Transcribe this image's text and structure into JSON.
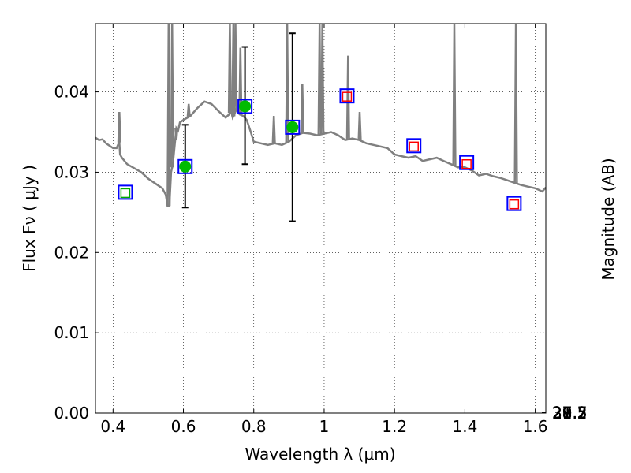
{
  "chart_data": {
    "type": "scatter",
    "xlabel": "Wavelength  λ (μm)",
    "ylabel": "Flux  Fν  ( μJy )",
    "y2label": "Magnitude (AB)",
    "xlim": [
      0.35,
      1.63
    ],
    "ylim": [
      0.0,
      0.0485
    ],
    "xticks": [
      0.4,
      0.6,
      0.8,
      1.0,
      1.2,
      1.4,
      1.6
    ],
    "xtick_labels": [
      "0.4",
      "0.6",
      "0.8",
      "1",
      "1.2",
      "1.4",
      "1.6"
    ],
    "yticks": [
      0.0,
      0.01,
      0.02,
      0.03,
      0.04
    ],
    "ytick_labels": [
      "0.00",
      "0.01",
      "0.02",
      "0.03",
      "0.04"
    ],
    "mag_ticks": [
      "27.2",
      "27.3",
      "27.5",
      "27.7",
      "28",
      "28.2",
      "28.5",
      "29",
      "29.5",
      "30",
      "31"
    ],
    "grid": true,
    "colors": {
      "sed_line": "#808080",
      "observed_fill": "#00bb00",
      "model_box": "#0000ff",
      "upper_limit": "#ff0000",
      "small_marker_green": "#00aa00",
      "errorbar": "#000000"
    },
    "series": [
      {
        "kind": "line",
        "x": [
          0.35,
          0.36,
          0.37,
          0.38,
          0.4,
          0.41,
          0.415,
          0.418,
          0.42,
          0.425,
          0.44,
          0.46,
          0.48,
          0.5,
          0.52,
          0.54,
          0.55,
          0.555,
          0.56,
          0.565,
          0.57,
          0.58,
          0.585,
          0.59,
          0.6,
          0.62,
          0.64,
          0.66,
          0.68,
          0.7,
          0.72,
          0.73,
          0.735,
          0.74,
          0.745,
          0.75,
          0.76,
          0.77,
          0.78,
          0.79,
          0.8,
          0.82,
          0.84,
          0.86,
          0.88,
          0.9,
          0.92,
          0.94,
          0.96,
          0.98,
          1.0,
          1.02,
          1.04,
          1.06,
          1.08,
          1.1,
          1.12,
          1.14,
          1.16,
          1.18,
          1.2,
          1.22,
          1.24,
          1.26,
          1.28,
          1.3,
          1.32,
          1.34,
          1.36,
          1.38,
          1.4,
          1.42,
          1.44,
          1.46,
          1.48,
          1.5,
          1.52,
          1.54,
          1.56,
          1.58,
          1.6,
          1.62,
          1.63
        ],
        "y": [
          0.0343,
          0.034,
          0.0341,
          0.0336,
          0.033,
          0.033,
          0.0335,
          0.0337,
          0.0322,
          0.0318,
          0.031,
          0.0305,
          0.03,
          0.0292,
          0.0286,
          0.028,
          0.0272,
          0.0258,
          0.0258,
          0.03,
          0.031,
          0.0355,
          0.0352,
          0.0362,
          0.0365,
          0.037,
          0.038,
          0.0388,
          0.0385,
          0.0376,
          0.0368,
          0.0372,
          0.0377,
          0.0368,
          0.0372,
          0.0378,
          0.0372,
          0.037,
          0.0365,
          0.0352,
          0.0338,
          0.0336,
          0.0334,
          0.0336,
          0.0334,
          0.0338,
          0.0346,
          0.0349,
          0.0348,
          0.0346,
          0.0348,
          0.035,
          0.0346,
          0.034,
          0.0342,
          0.034,
          0.0336,
          0.0334,
          0.0332,
          0.033,
          0.0322,
          0.032,
          0.0318,
          0.032,
          0.0314,
          0.0316,
          0.0318,
          0.0314,
          0.031,
          0.0306,
          0.0306,
          0.0302,
          0.0296,
          0.0298,
          0.0295,
          0.0293,
          0.029,
          0.0287,
          0.0284,
          0.0282,
          0.028,
          0.0276,
          0.0281
        ],
        "spikes": [
          {
            "x": 0.418,
            "y": 0.0375
          },
          {
            "x": 0.558,
            "y": 0.0485
          },
          {
            "x": 0.568,
            "y": 0.0485
          },
          {
            "x": 0.58,
            "y": 0.034
          },
          {
            "x": 0.615,
            "y": 0.0385
          },
          {
            "x": 0.732,
            "y": 0.0485
          },
          {
            "x": 0.742,
            "y": 0.0485
          },
          {
            "x": 0.748,
            "y": 0.0485
          },
          {
            "x": 0.762,
            "y": 0.0455
          },
          {
            "x": 0.857,
            "y": 0.037
          },
          {
            "x": 0.895,
            "y": 0.0485
          },
          {
            "x": 0.938,
            "y": 0.041
          },
          {
            "x": 0.987,
            "y": 0.0485
          },
          {
            "x": 0.995,
            "y": 0.0485
          },
          {
            "x": 1.068,
            "y": 0.0445
          },
          {
            "x": 1.101,
            "y": 0.0375
          },
          {
            "x": 1.37,
            "y": 0.0485
          },
          {
            "x": 1.545,
            "y": 0.0485
          }
        ]
      },
      {
        "kind": "observed",
        "points": [
          {
            "x": 0.605,
            "y": 0.0307,
            "yerr_low": 0.0256,
            "yerr_high": 0.0359
          },
          {
            "x": 0.775,
            "y": 0.0382,
            "yerr_low": 0.031,
            "yerr_high": 0.0456
          },
          {
            "x": 0.91,
            "y": 0.0356,
            "yerr_low": 0.0239,
            "yerr_high": 0.0473
          }
        ]
      },
      {
        "kind": "model_boxes",
        "points": [
          {
            "x": 0.435,
            "y": 0.0275
          },
          {
            "x": 0.605,
            "y": 0.0307
          },
          {
            "x": 0.775,
            "y": 0.0382
          },
          {
            "x": 0.91,
            "y": 0.0356
          },
          {
            "x": 1.065,
            "y": 0.0395
          },
          {
            "x": 1.255,
            "y": 0.0333
          },
          {
            "x": 1.405,
            "y": 0.0312
          },
          {
            "x": 1.54,
            "y": 0.0261
          }
        ]
      },
      {
        "kind": "upper_limits",
        "points": [
          {
            "x": 1.065,
            "y": 0.0394
          },
          {
            "x": 1.255,
            "y": 0.0332
          },
          {
            "x": 1.405,
            "y": 0.031
          },
          {
            "x": 1.54,
            "y": 0.026
          }
        ]
      },
      {
        "kind": "small_green",
        "points": [
          {
            "x": 0.435,
            "y": 0.0274
          }
        ]
      }
    ]
  }
}
